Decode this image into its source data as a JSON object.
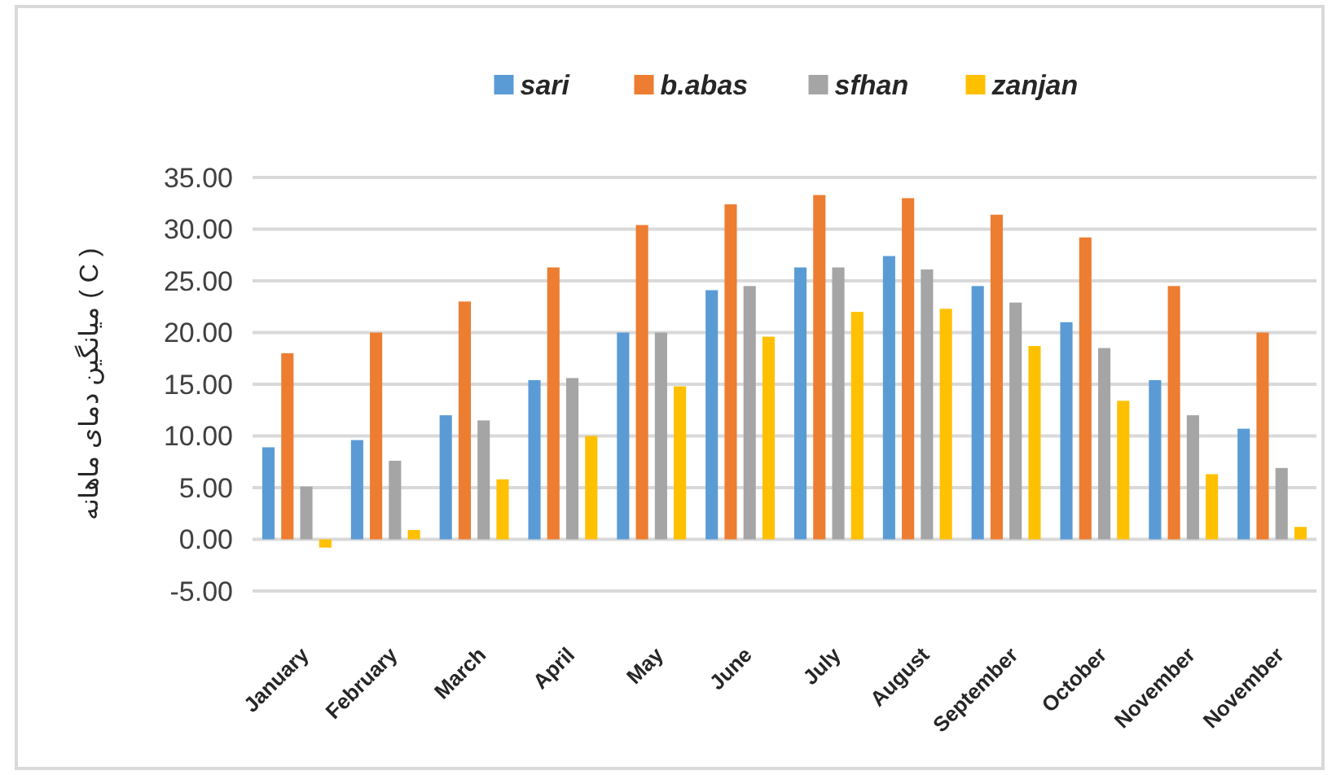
{
  "chart_data": {
    "type": "bar",
    "ylabel": "میانگین دمای ماهانه ( C )",
    "categories": [
      "January",
      "February",
      "March",
      "April",
      "May",
      "June",
      "July",
      "August",
      "September",
      "October",
      "November",
      "November"
    ],
    "series": [
      {
        "name": "sari",
        "color": "#5b9bd5",
        "values": [
          8.9,
          9.6,
          12.0,
          15.4,
          20.0,
          24.1,
          26.3,
          27.4,
          24.5,
          21.0,
          15.4,
          10.7
        ]
      },
      {
        "name": "b.abas",
        "color": "#ed7d31",
        "values": [
          18.0,
          20.0,
          23.0,
          26.3,
          30.4,
          32.4,
          33.3,
          33.0,
          31.4,
          29.2,
          24.5,
          20.0
        ]
      },
      {
        "name": "sfhan",
        "color": "#a5a5a5",
        "values": [
          5.1,
          7.6,
          11.5,
          15.6,
          20.0,
          24.5,
          26.3,
          26.1,
          22.9,
          18.5,
          12.0,
          6.9
        ]
      },
      {
        "name": "zanjan",
        "color": "#ffc000",
        "values": [
          -0.8,
          0.9,
          5.8,
          10.0,
          14.8,
          19.6,
          22.0,
          22.3,
          18.7,
          13.4,
          6.3,
          1.2
        ]
      }
    ],
    "ylim": [
      -5,
      35
    ],
    "yticks": [
      {
        "value": -5,
        "label": "-5.00"
      },
      {
        "value": 0,
        "label": "0.00"
      },
      {
        "value": 5,
        "label": "5.00"
      },
      {
        "value": 10,
        "label": "10.00"
      },
      {
        "value": 15,
        "label": "15.00"
      },
      {
        "value": 20,
        "label": "20.00"
      },
      {
        "value": 25,
        "label": "25.00"
      },
      {
        "value": 30,
        "label": "30.00"
      },
      {
        "value": 35,
        "label": "35.00"
      }
    ],
    "grid": "y",
    "legend": "top"
  }
}
